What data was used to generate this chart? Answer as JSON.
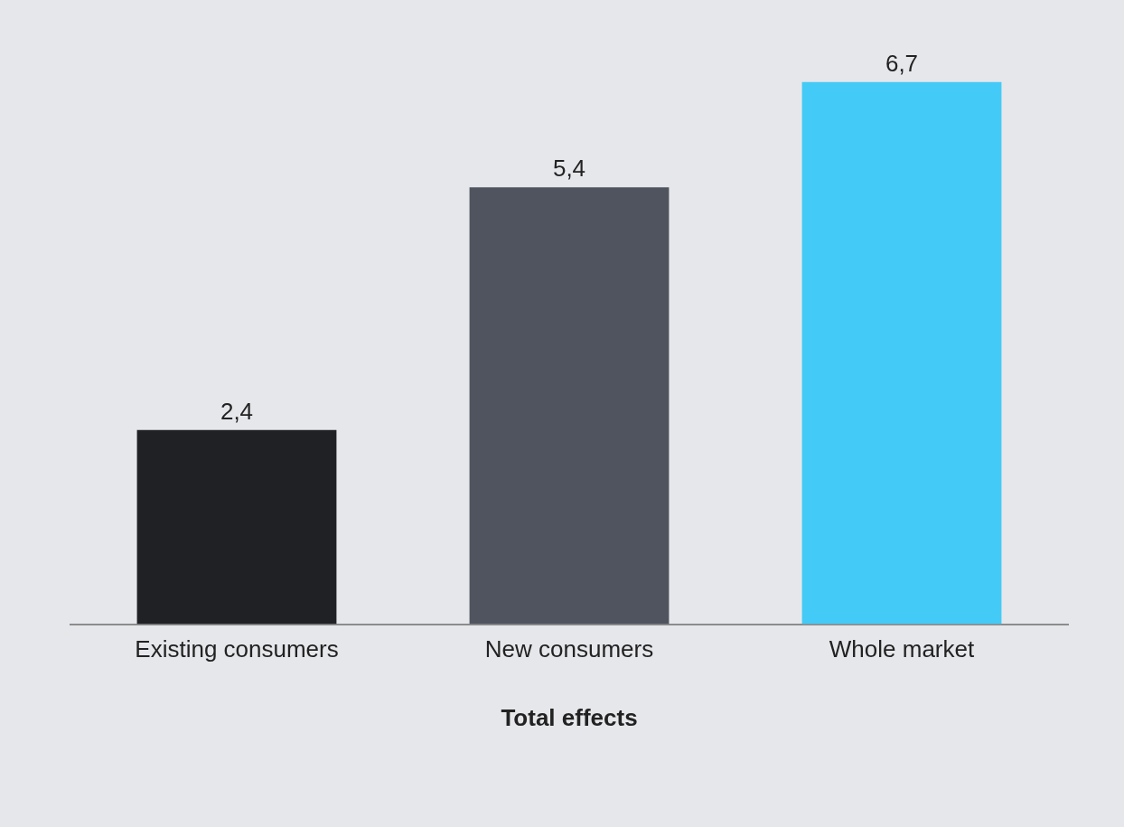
{
  "chart_data": {
    "type": "bar",
    "xlabel": "Total effects",
    "categories": [
      "Existing consumers",
      "New consumers",
      "Whole market"
    ],
    "values": [
      2.4,
      5.4,
      6.7
    ],
    "value_labels": [
      "2,4",
      "5,4",
      "6,7"
    ],
    "colors": [
      "#202125",
      "#50545f",
      "#44caf6"
    ],
    "relative": false,
    "grid": false,
    "legend": false
  }
}
